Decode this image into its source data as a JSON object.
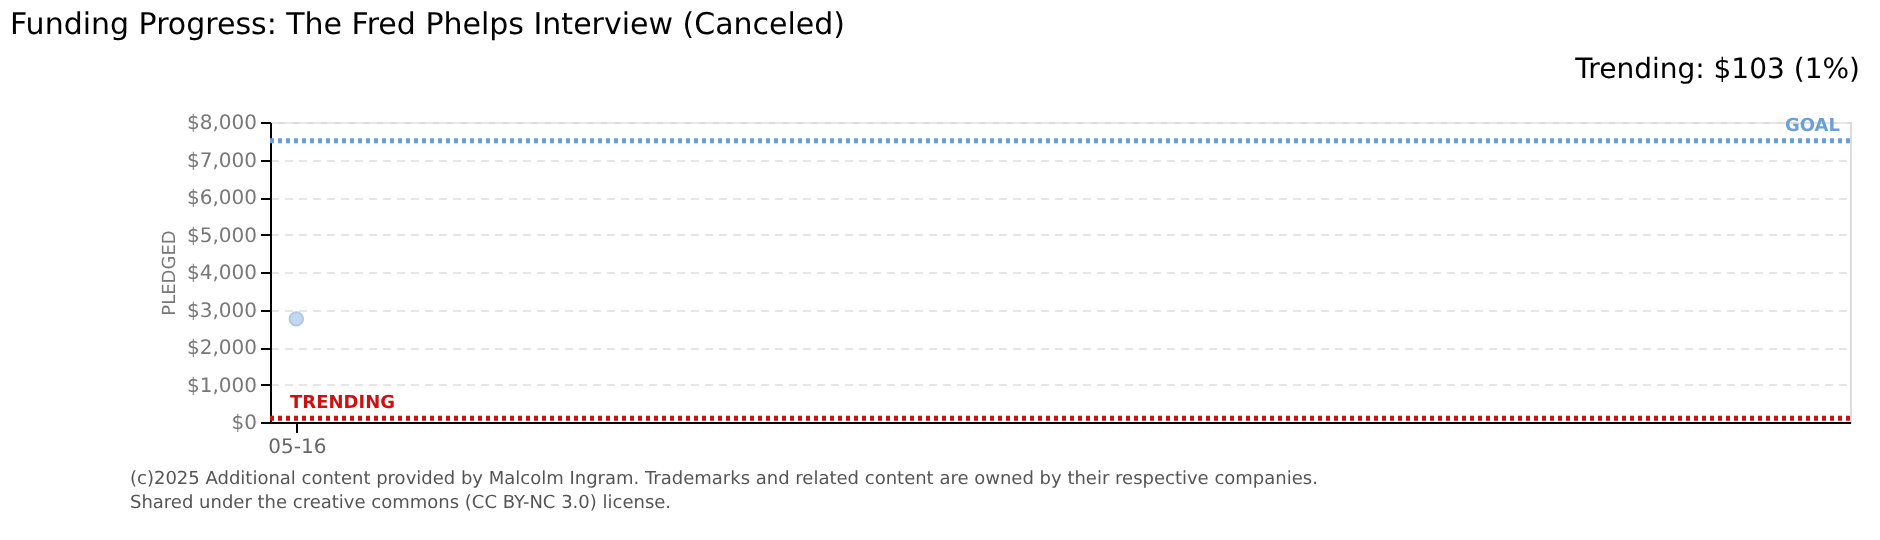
{
  "chart_data": {
    "type": "line",
    "title": "Funding Progress: The Fred Phelps Interview (Canceled)",
    "subtitle": "Trending: $103 (1%)",
    "ylabel": "PLEDGED",
    "categories": [
      "05-16",
      null,
      null,
      null,
      null,
      null,
      null,
      null,
      null,
      null,
      null,
      null,
      null,
      null,
      null,
      null,
      null,
      null,
      null,
      null,
      null,
      null,
      null,
      null,
      null,
      null,
      null,
      null,
      null,
      null
    ],
    "series": [
      {
        "color": "#a8c8ec",
        "values": [
          2750,
          null,
          null,
          null,
          null,
          null,
          null,
          null,
          null,
          null,
          null,
          null,
          null,
          null,
          null,
          null,
          null,
          null,
          null,
          null,
          null,
          null,
          null,
          null,
          null,
          null,
          null,
          null,
          null,
          null
        ]
      }
    ],
    "marker": "circle",
    "ylim": [
      0,
      8000
    ],
    "yticks": [
      {
        "value": 0,
        "label": "$0"
      },
      {
        "value": 1000,
        "label": "$1,000"
      },
      {
        "value": 2000,
        "label": "$2,000"
      },
      {
        "value": 3000,
        "label": "$3,000"
      },
      {
        "value": 4000,
        "label": "$4,000"
      },
      {
        "value": 5000,
        "label": "$5,000"
      },
      {
        "value": 6000,
        "label": "$6,000"
      },
      {
        "value": 7000,
        "label": "$7,000"
      },
      {
        "value": 8000,
        "label": "$8,000"
      }
    ],
    "grid": "y",
    "ref_lines": [
      {
        "axis": "y",
        "value": 7500,
        "label": "GOAL",
        "color": "#6a9fd8",
        "line_style": "dotted"
      },
      {
        "axis": "y",
        "value": 103,
        "label": "TRENDING",
        "color": "#cc1111",
        "line_style": "dotted"
      }
    ],
    "annotations": [
      "(c)2025 Additional content provided by Malcolm Ingram. Trademarks and related content are owned by their respective companies.",
      "Shared under the creative commons (CC BY-NC 3.0) license."
    ]
  }
}
